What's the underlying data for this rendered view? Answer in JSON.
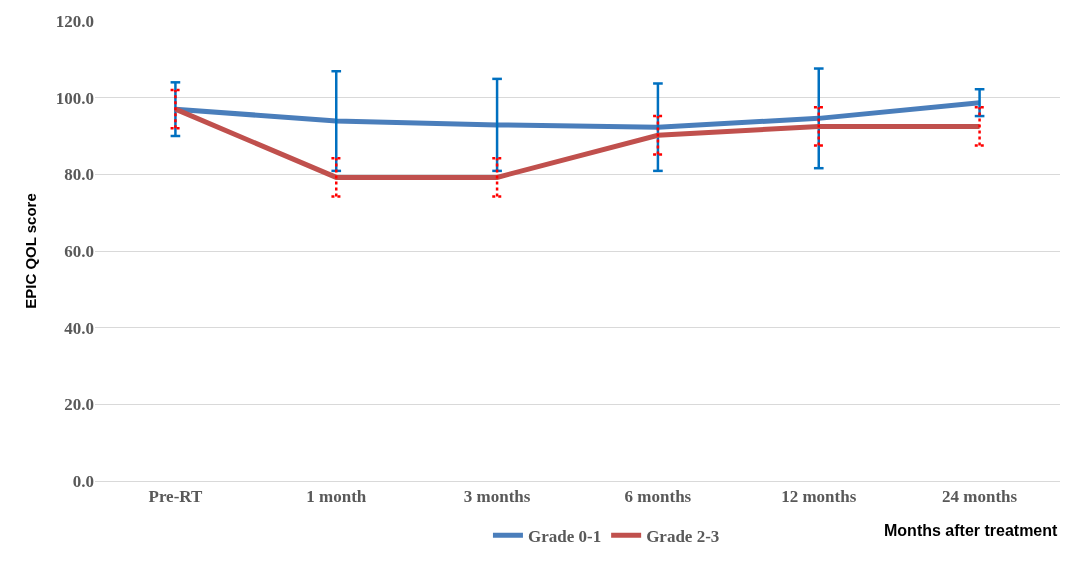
{
  "chart_data": {
    "type": "line",
    "xlabel": "Months after treatment",
    "ylabel": "EPIC QOL score",
    "categories": [
      "Pre-RT",
      "1 month",
      "3 months",
      "6 months",
      "12 months",
      "24 months"
    ],
    "series": [
      {
        "name": "Grade 0-1",
        "color": "#4a7ebb",
        "values": [
          97.0,
          93.9,
          92.9,
          92.3,
          94.6,
          98.7
        ],
        "errors": [
          7,
          13,
          12,
          11.4,
          13,
          3.5
        ]
      },
      {
        "name": "Grade 2-3",
        "color": "#c0504d",
        "values": [
          97.0,
          79.2,
          79.2,
          90.2,
          92.5,
          92.5
        ],
        "errors": [
          5,
          5,
          5,
          5,
          5,
          5
        ]
      }
    ],
    "ylim": [
      0,
      120
    ],
    "yticks": [
      {
        "value": 0,
        "label": "0.0"
      },
      {
        "value": 20,
        "label": "20.0"
      },
      {
        "value": 40,
        "label": "40.0"
      },
      {
        "value": 60,
        "label": "60.0"
      },
      {
        "value": 80,
        "label": "80.0"
      },
      {
        "value": 100,
        "label": "100.0"
      },
      {
        "value": 120,
        "label": "120.0"
      }
    ],
    "grid": "y",
    "legend": "bottom",
    "marker": "none",
    "line_style": "solid"
  }
}
